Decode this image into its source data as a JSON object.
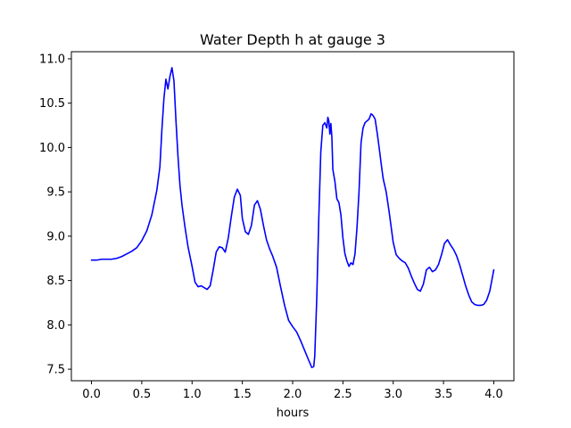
{
  "chart_data": {
    "type": "line",
    "title": "Water Depth h at gauge 3",
    "xlabel": "hours",
    "ylabel": "",
    "xlim": [
      -0.2,
      4.2
    ],
    "ylim": [
      7.37,
      11.08
    ],
    "xticks": [
      "0.0",
      "0.5",
      "1.0",
      "1.5",
      "2.0",
      "2.5",
      "3.0",
      "3.5",
      "4.0"
    ],
    "yticks": [
      "7.5",
      "8.0",
      "8.5",
      "9.0",
      "9.5",
      "10.0",
      "10.5",
      "11.0"
    ],
    "grid": false,
    "series": [
      {
        "color": "#0000ff",
        "x": [
          0.0,
          0.05,
          0.1,
          0.15,
          0.2,
          0.25,
          0.3,
          0.35,
          0.4,
          0.45,
          0.5,
          0.55,
          0.6,
          0.65,
          0.68,
          0.7,
          0.72,
          0.74,
          0.76,
          0.78,
          0.8,
          0.82,
          0.84,
          0.86,
          0.88,
          0.9,
          0.93,
          0.96,
          1.0,
          1.03,
          1.06,
          1.09,
          1.12,
          1.15,
          1.18,
          1.21,
          1.24,
          1.27,
          1.3,
          1.33,
          1.36,
          1.39,
          1.42,
          1.45,
          1.48,
          1.5,
          1.53,
          1.56,
          1.59,
          1.62,
          1.65,
          1.68,
          1.71,
          1.74,
          1.77,
          1.8,
          1.84,
          1.88,
          1.92,
          1.96,
          2.0,
          2.04,
          2.08,
          2.12,
          2.16,
          2.19,
          2.21,
          2.22,
          2.24,
          2.26,
          2.28,
          2.3,
          2.32,
          2.34,
          2.35,
          2.36,
          2.37,
          2.38,
          2.39,
          2.4,
          2.42,
          2.44,
          2.46,
          2.48,
          2.5,
          2.52,
          2.54,
          2.56,
          2.58,
          2.6,
          2.62,
          2.64,
          2.66,
          2.68,
          2.7,
          2.72,
          2.74,
          2.76,
          2.78,
          2.8,
          2.82,
          2.84,
          2.86,
          2.88,
          2.9,
          2.93,
          2.96,
          3.0,
          3.03,
          3.06,
          3.09,
          3.12,
          3.15,
          3.18,
          3.21,
          3.24,
          3.27,
          3.3,
          3.33,
          3.36,
          3.39,
          3.42,
          3.45,
          3.48,
          3.51,
          3.54,
          3.57,
          3.6,
          3.63,
          3.66,
          3.69,
          3.72,
          3.75,
          3.78,
          3.81,
          3.84,
          3.87,
          3.9,
          3.93,
          3.96,
          3.98,
          4.0
        ],
        "y": [
          8.73,
          8.73,
          8.74,
          8.74,
          8.74,
          8.75,
          8.77,
          8.8,
          8.83,
          8.87,
          8.95,
          9.06,
          9.24,
          9.52,
          9.78,
          10.2,
          10.55,
          10.77,
          10.66,
          10.8,
          10.9,
          10.75,
          10.3,
          9.9,
          9.57,
          9.35,
          9.1,
          8.88,
          8.66,
          8.48,
          8.43,
          8.44,
          8.42,
          8.4,
          8.44,
          8.62,
          8.82,
          8.88,
          8.87,
          8.82,
          8.98,
          9.22,
          9.44,
          9.53,
          9.46,
          9.2,
          9.05,
          9.02,
          9.12,
          9.35,
          9.4,
          9.3,
          9.12,
          8.96,
          8.86,
          8.78,
          8.65,
          8.43,
          8.22,
          8.05,
          7.98,
          7.92,
          7.82,
          7.71,
          7.6,
          7.52,
          7.53,
          7.65,
          8.3,
          9.2,
          9.95,
          10.25,
          10.28,
          10.22,
          10.34,
          10.3,
          10.15,
          10.27,
          10.12,
          9.75,
          9.62,
          9.42,
          9.38,
          9.24,
          8.98,
          8.8,
          8.72,
          8.66,
          8.7,
          8.68,
          8.8,
          9.1,
          9.5,
          10.05,
          10.22,
          10.28,
          10.3,
          10.32,
          10.38,
          10.36,
          10.32,
          10.17,
          10.0,
          9.82,
          9.65,
          9.5,
          9.27,
          8.93,
          8.79,
          8.75,
          8.72,
          8.7,
          8.64,
          8.55,
          8.47,
          8.4,
          8.38,
          8.46,
          8.62,
          8.65,
          8.6,
          8.62,
          8.68,
          8.79,
          8.92,
          8.96,
          8.9,
          8.85,
          8.78,
          8.68,
          8.56,
          8.44,
          8.34,
          8.26,
          8.23,
          8.22,
          8.22,
          8.23,
          8.28,
          8.38,
          8.5,
          8.62
        ]
      }
    ]
  }
}
